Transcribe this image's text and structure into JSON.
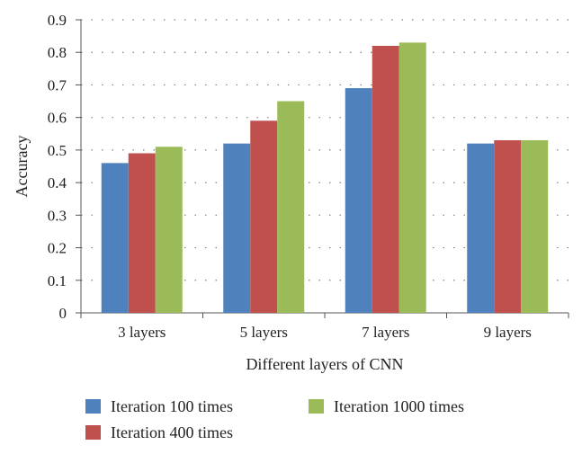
{
  "chart_data": {
    "type": "bar",
    "title": "",
    "xlabel": "Different layers of CNN",
    "ylabel": "Accuracy",
    "ylim": [
      0,
      0.9
    ],
    "yticks": [
      "0",
      "0.1",
      "0.2",
      "0.3",
      "0.4",
      "0.5",
      "0.6",
      "0.7",
      "0.8",
      "0.9"
    ],
    "grid": true,
    "legend_position": "bottom",
    "categories": [
      "3 layers",
      "5 layers",
      "7 layers",
      "9 layers"
    ],
    "series": [
      {
        "name": "Iteration 100 times",
        "color": "#4f81bd",
        "values": [
          0.46,
          0.52,
          0.69,
          0.52
        ]
      },
      {
        "name": "Iteration 400 times",
        "color": "#c0504d",
        "values": [
          0.49,
          0.59,
          0.82,
          0.53
        ]
      },
      {
        "name": "Iteration 1000 times",
        "color": "#9bbb59",
        "values": [
          0.51,
          0.65,
          0.83,
          0.53
        ]
      }
    ]
  }
}
